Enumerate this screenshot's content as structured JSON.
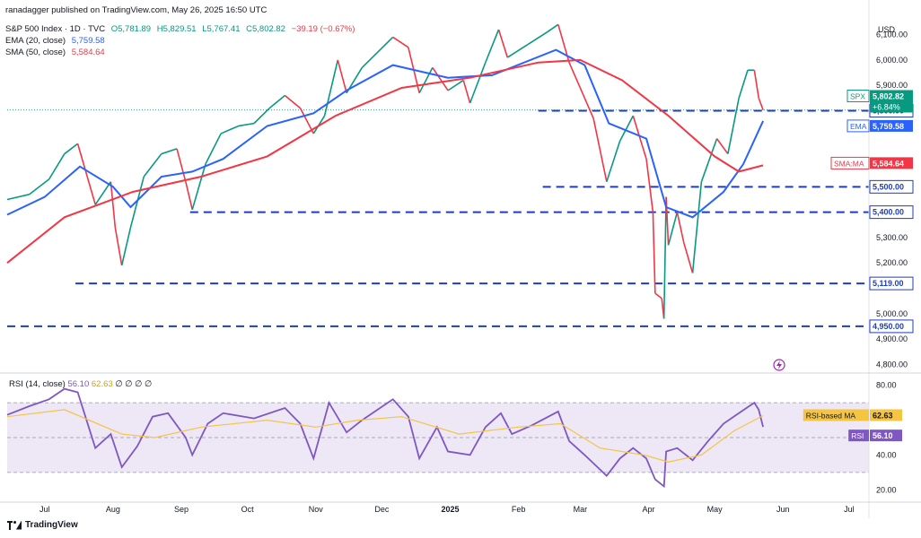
{
  "header": {
    "publisher": "ranadagger published on TradingView.com, May 26, 2025 16:50 UTC",
    "symbol": "S&P 500 Index · 1D · TVC",
    "ohlc": {
      "o": "O5,781.89",
      "h": "H5,829.51",
      "l": "L5,767.41",
      "c": "C5,802.82",
      "chg": "−39.19 (−0.67%)"
    },
    "ema_label": "EMA (20, close)",
    "ema_value": "5,759.58",
    "sma_label": "SMA (50, close)",
    "sma_value": "5,584.64"
  },
  "rsi_legend": {
    "label": "RSI (14, close)",
    "v1": "56.10",
    "v2": "62.63",
    "rest": "∅ ∅ ∅ ∅"
  },
  "footer": {
    "brand": "TradingView"
  },
  "colors": {
    "ema": "#2962ff",
    "sma": "#f23645",
    "up": "#089981",
    "down": "#f23645",
    "rsi": "#7e57c2",
    "rsi_ma": "#f5c542",
    "rsi_band": "#ede7f6",
    "level": "#1e3ebd"
  },
  "chart_data": [
    {
      "type": "line",
      "title": "S&P 500 Index",
      "currency": "USD",
      "ylim": [
        4780,
        6180
      ],
      "yticks": [
        "6,100.00",
        "6,000.00",
        "5,900.00",
        "5,600.00",
        "5,300.00",
        "5,200.00",
        "5,000.00",
        "4,900.00",
        "4,800.00"
      ],
      "ytick_values": [
        6100,
        6000,
        5900,
        5600,
        5300,
        5200,
        5000,
        4900,
        4800
      ],
      "xticks": [
        "Jul",
        "Aug",
        "Sep",
        "Oct",
        "Nov",
        "Dec",
        "2025",
        "Feb",
        "Mar",
        "Apr",
        "May",
        "Jun",
        "Jul"
      ],
      "xtick_dates": [
        "2024-07-01",
        "2024-08-01",
        "2024-09-01",
        "2024-10-01",
        "2024-11-01",
        "2024-12-01",
        "2025-01-01",
        "2025-02-01",
        "2025-03-01",
        "2025-04-01",
        "2025-05-01",
        "2025-06-01",
        "2025-07-01"
      ],
      "x_range": [
        "2024-06-14",
        "2025-07-10"
      ],
      "series": [
        {
          "name": "SPX",
          "values": [
            [
              "2024-06-14",
              5450
            ],
            [
              "2024-06-24",
              5470
            ],
            [
              "2024-07-03",
              5530
            ],
            [
              "2024-07-10",
              5630
            ],
            [
              "2024-07-16",
              5670
            ],
            [
              "2024-07-24",
              5430
            ],
            [
              "2024-07-31",
              5520
            ],
            [
              "2024-08-02",
              5340
            ],
            [
              "2024-08-05",
              5190
            ],
            [
              "2024-08-09",
              5340
            ],
            [
              "2024-08-15",
              5540
            ],
            [
              "2024-08-23",
              5630
            ],
            [
              "2024-08-30",
              5650
            ],
            [
              "2024-09-03",
              5520
            ],
            [
              "2024-09-06",
              5410
            ],
            [
              "2024-09-12",
              5590
            ],
            [
              "2024-09-19",
              5710
            ],
            [
              "2024-09-27",
              5740
            ],
            [
              "2024-10-04",
              5750
            ],
            [
              "2024-10-11",
              5810
            ],
            [
              "2024-10-18",
              5860
            ],
            [
              "2024-10-25",
              5810
            ],
            [
              "2024-10-31",
              5710
            ],
            [
              "2024-11-05",
              5780
            ],
            [
              "2024-11-11",
              6000
            ],
            [
              "2024-11-15",
              5870
            ],
            [
              "2024-11-22",
              5970
            ],
            [
              "2024-11-29",
              6030
            ],
            [
              "2024-12-06",
              6090
            ],
            [
              "2024-12-13",
              6050
            ],
            [
              "2024-12-18",
              5870
            ],
            [
              "2024-12-24",
              5970
            ],
            [
              "2024-12-31",
              5880
            ],
            [
              "2025-01-07",
              5920
            ],
            [
              "2025-01-10",
              5830
            ],
            [
              "2025-01-17",
              5990
            ],
            [
              "2025-01-23",
              6120
            ],
            [
              "2025-01-27",
              6010
            ],
            [
              "2025-02-05",
              6060
            ],
            [
              "2025-02-14",
              6110
            ],
            [
              "2025-02-19",
              6140
            ],
            [
              "2025-02-24",
              5990
            ],
            [
              "2025-03-03",
              5850
            ],
            [
              "2025-03-07",
              5770
            ],
            [
              "2025-03-13",
              5520
            ],
            [
              "2025-03-19",
              5680
            ],
            [
              "2025-03-25",
              5780
            ],
            [
              "2025-03-31",
              5610
            ],
            [
              "2025-04-03",
              5400
            ],
            [
              "2025-04-04",
              5080
            ],
            [
              "2025-04-07",
              5060
            ],
            [
              "2025-04-08",
              4980
            ],
            [
              "2025-04-09",
              5460
            ],
            [
              "2025-04-10",
              5270
            ],
            [
              "2025-04-14",
              5400
            ],
            [
              "2025-04-17",
              5280
            ],
            [
              "2025-04-21",
              5160
            ],
            [
              "2025-04-25",
              5520
            ],
            [
              "2025-05-02",
              5690
            ],
            [
              "2025-05-07",
              5630
            ],
            [
              "2025-05-12",
              5850
            ],
            [
              "2025-05-16",
              5960
            ],
            [
              "2025-05-19",
              5960
            ],
            [
              "2025-05-21",
              5850
            ],
            [
              "2025-05-23",
              5802.82
            ]
          ]
        },
        {
          "name": "EMA",
          "values": [
            [
              "2024-06-14",
              5390
            ],
            [
              "2024-07-01",
              5460
            ],
            [
              "2024-07-17",
              5580
            ],
            [
              "2024-08-01",
              5500
            ],
            [
              "2024-08-09",
              5420
            ],
            [
              "2024-08-23",
              5540
            ],
            [
              "2024-09-06",
              5560
            ],
            [
              "2024-09-20",
              5610
            ],
            [
              "2024-10-10",
              5740
            ],
            [
              "2024-10-31",
              5790
            ],
            [
              "2024-11-15",
              5880
            ],
            [
              "2024-12-06",
              5980
            ],
            [
              "2024-12-31",
              5930
            ],
            [
              "2025-01-20",
              5940
            ],
            [
              "2025-02-18",
              6040
            ],
            [
              "2025-03-03",
              5980
            ],
            [
              "2025-03-14",
              5750
            ],
            [
              "2025-03-31",
              5690
            ],
            [
              "2025-04-09",
              5420
            ],
            [
              "2025-04-21",
              5380
            ],
            [
              "2025-05-05",
              5480
            ],
            [
              "2025-05-14",
              5590
            ],
            [
              "2025-05-23",
              5759.58
            ]
          ]
        },
        {
          "name": "SMA",
          "values": [
            [
              "2024-06-14",
              5200
            ],
            [
              "2024-07-10",
              5380
            ],
            [
              "2024-08-10",
              5480
            ],
            [
              "2024-09-10",
              5540
            ],
            [
              "2024-10-10",
              5620
            ],
            [
              "2024-11-10",
              5780
            ],
            [
              "2024-12-10",
              5890
            ],
            [
              "2025-01-10",
              5930
            ],
            [
              "2025-02-10",
              5990
            ],
            [
              "2025-03-01",
              6000
            ],
            [
              "2025-03-20",
              5920
            ],
            [
              "2025-04-10",
              5780
            ],
            [
              "2025-05-01",
              5620
            ],
            [
              "2025-05-12",
              5560
            ],
            [
              "2025-05-23",
              5584.64
            ]
          ]
        }
      ],
      "levels": [
        {
          "label": "5,800.00",
          "value": 5800,
          "from": "2025-02-10"
        },
        {
          "label": "5,500.00",
          "value": 5500,
          "from": "2025-02-12"
        },
        {
          "label": "5,400.00",
          "value": 5400,
          "from": "2024-09-05"
        },
        {
          "label": "5,119.00",
          "value": 5119,
          "from": "2024-07-15"
        },
        {
          "label": "4,950.00",
          "value": 4950,
          "from": "2024-06-14"
        }
      ],
      "tags": [
        {
          "label": "SPX",
          "value": "5,802.82",
          "sub": "+6.84%"
        },
        {
          "label": "EMA",
          "value": "5,759.58"
        },
        {
          "label": "SMA:MA",
          "value": "5,584.64"
        }
      ]
    },
    {
      "type": "line",
      "title": "RSI (14, close)",
      "ylim": [
        15,
        85
      ],
      "yticks": [
        "80.00",
        "40.00",
        "20.00"
      ],
      "ytick_values": [
        80,
        40,
        20
      ],
      "band": [
        30,
        70
      ],
      "series": [
        {
          "name": "RSI",
          "values": [
            [
              "2024-06-14",
              63
            ],
            [
              "2024-06-24",
              68
            ],
            [
              "2024-07-03",
              72
            ],
            [
              "2024-07-10",
              78
            ],
            [
              "2024-07-16",
              76
            ],
            [
              "2024-07-24",
              44
            ],
            [
              "2024-07-31",
              52
            ],
            [
              "2024-08-05",
              33
            ],
            [
              "2024-08-12",
              45
            ],
            [
              "2024-08-19",
              62
            ],
            [
              "2024-08-26",
              64
            ],
            [
              "2024-09-03",
              50
            ],
            [
              "2024-09-06",
              40
            ],
            [
              "2024-09-13",
              58
            ],
            [
              "2024-09-20",
              64
            ],
            [
              "2024-10-04",
              61
            ],
            [
              "2024-10-18",
              67
            ],
            [
              "2024-10-25",
              58
            ],
            [
              "2024-10-31",
              38
            ],
            [
              "2024-11-07",
              70
            ],
            [
              "2024-11-15",
              53
            ],
            [
              "2024-11-22",
              60
            ],
            [
              "2024-12-06",
              72
            ],
            [
              "2024-12-13",
              62
            ],
            [
              "2024-12-18",
              38
            ],
            [
              "2024-12-26",
              56
            ],
            [
              "2024-12-31",
              42
            ],
            [
              "2025-01-10",
              40
            ],
            [
              "2025-01-17",
              56
            ],
            [
              "2025-01-24",
              64
            ],
            [
              "2025-01-29",
              52
            ],
            [
              "2025-02-07",
              57
            ],
            [
              "2025-02-19",
              65
            ],
            [
              "2025-02-24",
              48
            ],
            [
              "2025-03-03",
              40
            ],
            [
              "2025-03-13",
              28
            ],
            [
              "2025-03-19",
              38
            ],
            [
              "2025-03-25",
              44
            ],
            [
              "2025-03-31",
              38
            ],
            [
              "2025-04-04",
              26
            ],
            [
              "2025-04-08",
              22
            ],
            [
              "2025-04-09",
              42
            ],
            [
              "2025-04-14",
              44
            ],
            [
              "2025-04-21",
              37
            ],
            [
              "2025-04-28",
              48
            ],
            [
              "2025-05-05",
              58
            ],
            [
              "2025-05-12",
              64
            ],
            [
              "2025-05-19",
              70
            ],
            [
              "2025-05-21",
              66
            ],
            [
              "2025-05-23",
              56.1
            ]
          ]
        },
        {
          "name": "RSI-based MA",
          "values": [
            [
              "2024-06-14",
              62
            ],
            [
              "2024-07-10",
              66
            ],
            [
              "2024-08-05",
              52
            ],
            [
              "2024-08-20",
              50
            ],
            [
              "2024-09-10",
              56
            ],
            [
              "2024-10-10",
              60
            ],
            [
              "2024-11-01",
              56
            ],
            [
              "2024-11-20",
              60
            ],
            [
              "2024-12-10",
              62
            ],
            [
              "2025-01-05",
              52
            ],
            [
              "2025-02-01",
              56
            ],
            [
              "2025-02-20",
              58
            ],
            [
              "2025-03-10",
              44
            ],
            [
              "2025-03-30",
              40
            ],
            [
              "2025-04-10",
              36
            ],
            [
              "2025-04-25",
              40
            ],
            [
              "2025-05-10",
              54
            ],
            [
              "2025-05-23",
              62.63
            ]
          ]
        }
      ],
      "tags": [
        {
          "label": "RSI-based MA",
          "value": "62.63"
        },
        {
          "label": "RSI",
          "value": "56.10"
        }
      ]
    }
  ]
}
